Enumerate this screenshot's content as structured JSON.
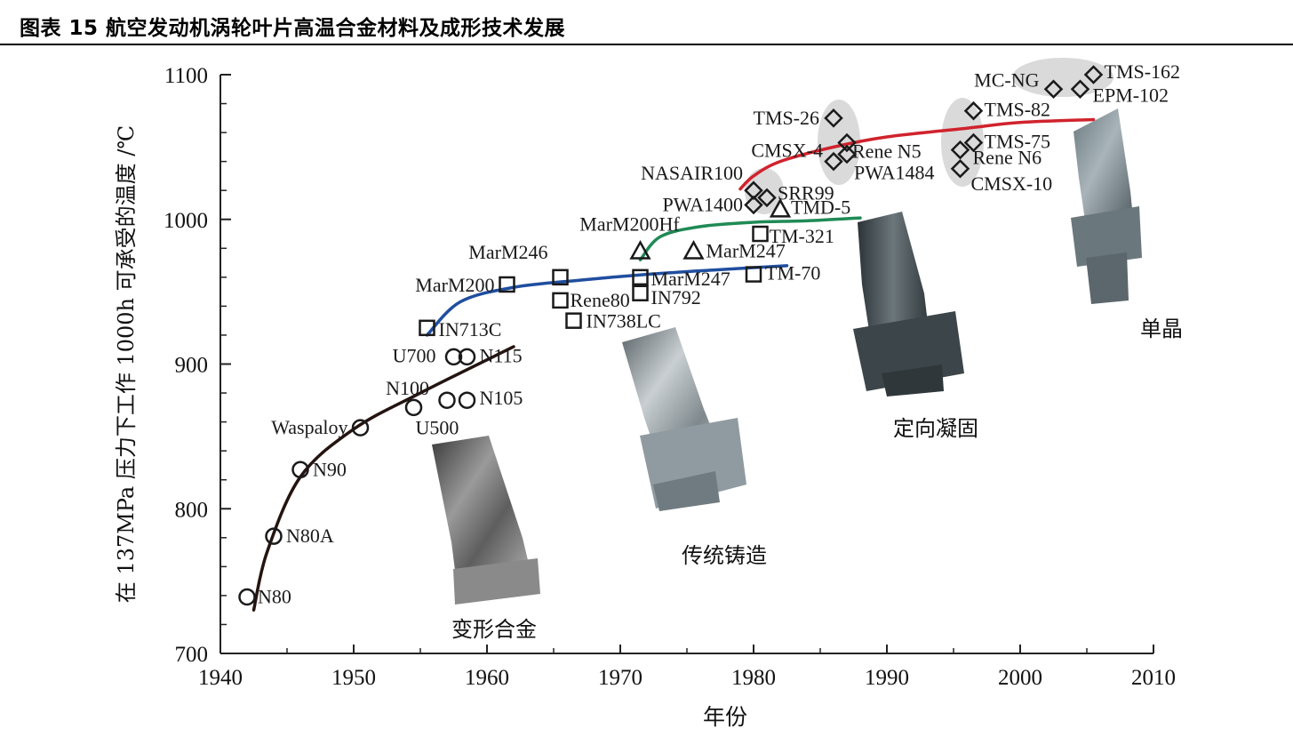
{
  "figure_title": "图表 15 航空发动机涡轮叶片高温合金材料及成形技术发展",
  "chart_data": {
    "type": "scatter",
    "title": "",
    "xlabel": "年份",
    "ylabel": "在 137MPa 压力下工作 1000h 可承受的温度 /℃",
    "xlim": [
      1940,
      2010
    ],
    "ylim": [
      700,
      1100
    ],
    "x_ticks": [
      1940,
      1950,
      1960,
      1970,
      1980,
      1990,
      2000,
      2010
    ],
    "y_ticks": [
      700,
      800,
      900,
      1000,
      1100
    ],
    "grid": false,
    "eras": [
      {
        "name": "变形合金",
        "marker": "circle",
        "color": "#241410"
      },
      {
        "name": "传统铸造",
        "marker": "square",
        "color": "#1f4e9f"
      },
      {
        "name": "定向凝固",
        "marker": "triangle",
        "color": "#1f8a55"
      },
      {
        "name": "单晶",
        "marker": "diamond",
        "color": "#d0232d"
      }
    ],
    "series": [
      {
        "name": "变形合金",
        "marker": "circle",
        "points": [
          {
            "label": "N80",
            "x": 1942,
            "y": 739
          },
          {
            "label": "N80A",
            "x": 1944,
            "y": 781
          },
          {
            "label": "N90",
            "x": 1946,
            "y": 827
          },
          {
            "label": "Waspaloy",
            "x": 1950.5,
            "y": 856
          },
          {
            "label": "U500",
            "x": 1954.5,
            "y": 870
          },
          {
            "label": "N100",
            "x": 1957,
            "y": 875
          },
          {
            "label": "N105",
            "x": 1958.5,
            "y": 875
          },
          {
            "label": "U700",
            "x": 1957.5,
            "y": 905
          },
          {
            "label": "N115",
            "x": 1958.5,
            "y": 905
          }
        ]
      },
      {
        "name": "传统铸造",
        "marker": "square",
        "points": [
          {
            "label": "IN713C",
            "x": 1955.5,
            "y": 925
          },
          {
            "label": "MarM200",
            "x": 1961.5,
            "y": 955
          },
          {
            "label": "MarM246",
            "x": 1965.5,
            "y": 960
          },
          {
            "label": "Rene80",
            "x": 1965.5,
            "y": 944
          },
          {
            "label": "IN738LC",
            "x": 1966.5,
            "y": 930
          },
          {
            "label": "MarM247",
            "x": 1971.5,
            "y": 960
          },
          {
            "label": "IN792",
            "x": 1971.5,
            "y": 949
          },
          {
            "label": "TM-70",
            "x": 1980,
            "y": 962
          },
          {
            "label": "TM-321",
            "x": 1980.5,
            "y": 990
          }
        ]
      },
      {
        "name": "定向凝固",
        "marker": "triangle",
        "points": [
          {
            "label": "MarM200Hf",
            "x": 1971.5,
            "y": 978
          },
          {
            "label": "MarM247",
            "x": 1975.5,
            "y": 978
          },
          {
            "label": "TMD-5",
            "x": 1982,
            "y": 1007
          }
        ]
      },
      {
        "name": "单晶",
        "marker": "diamond",
        "points": [
          {
            "label": "PWA1400",
            "x": 1980,
            "y": 1010
          },
          {
            "label": "NASAIR100",
            "x": 1980,
            "y": 1020
          },
          {
            "label": "SRR99",
            "x": 1981,
            "y": 1015
          },
          {
            "label": "TMS-26",
            "x": 1986,
            "y": 1070
          },
          {
            "label": "Rene N5",
            "x": 1987,
            "y": 1053
          },
          {
            "label": "CMSX-4",
            "x": 1986,
            "y": 1040
          },
          {
            "label": "PWA1484",
            "x": 1987,
            "y": 1045
          },
          {
            "label": "Rene N6",
            "x": 1995.5,
            "y": 1048
          },
          {
            "label": "CMSX-10",
            "x": 1995.5,
            "y": 1035
          },
          {
            "label": "TMS-75",
            "x": 1996.5,
            "y": 1053
          },
          {
            "label": "TMS-82",
            "x": 1996.5,
            "y": 1075
          },
          {
            "label": "MC-NG",
            "x": 2002.5,
            "y": 1090
          },
          {
            "label": "EPM-102",
            "x": 2004.5,
            "y": 1090
          },
          {
            "label": "TMS-162",
            "x": 2005.5,
            "y": 1100
          }
        ]
      }
    ],
    "trend_lines": [
      {
        "era": "变形合金",
        "color": "#241410",
        "x": [
          1942.5,
          1943.5,
          1946,
          1950,
          1955,
          1962
        ],
        "y": [
          730,
          770,
          822,
          855,
          880,
          912
        ]
      },
      {
        "era": "传统铸造",
        "color": "#1f4e9f",
        "x": [
          1955.5,
          1958,
          1962,
          1967,
          1972,
          1977,
          1982.5
        ],
        "y": [
          920,
          943,
          953,
          958,
          962,
          965,
          968
        ]
      },
      {
        "era": "定向凝固",
        "color": "#1f8a55",
        "x": [
          1971.5,
          1973,
          1976,
          1980,
          1984,
          1988
        ],
        "y": [
          972,
          988,
          995,
          998,
          999,
          1001
        ]
      },
      {
        "era": "单晶",
        "color": "#d0232d",
        "x": [
          1979,
          1980,
          1982,
          1986,
          1990,
          1996,
          2000,
          2005.5
        ],
        "y": [
          1021,
          1030,
          1040,
          1050,
          1057,
          1063,
          1067,
          1069
        ]
      }
    ]
  }
}
